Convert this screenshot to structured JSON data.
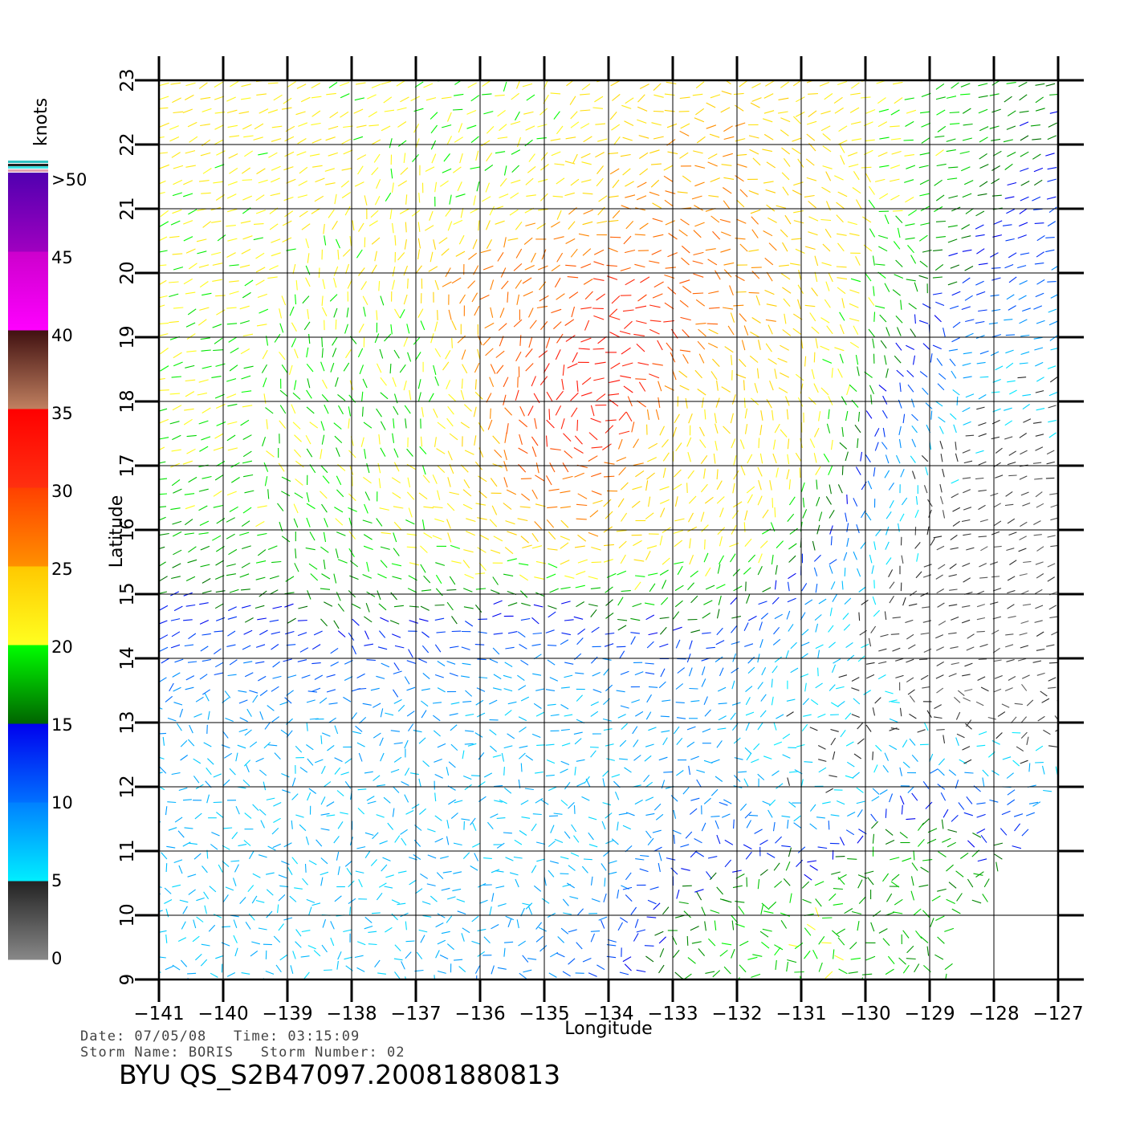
{
  "map": {
    "x_axis_label": "Longitude",
    "y_axis_label": "Latitude",
    "lon_ticks": [
      "−141",
      "−140",
      "−139",
      "−138",
      "−137",
      "−136",
      "−135",
      "−134",
      "−133",
      "−132",
      "−131",
      "−130",
      "−129",
      "−128",
      "−127"
    ],
    "lat_ticks": [
      "9",
      "10",
      "11",
      "12",
      "13",
      "14",
      "15",
      "16",
      "17",
      "18",
      "19",
      "20",
      "21",
      "22",
      "23"
    ],
    "lon_range": [
      -141,
      -127
    ],
    "lat_range": [
      9,
      23
    ],
    "grid": true,
    "layer": "scatterometer wind vectors (barbs), colored by speed"
  },
  "colorbar": {
    "unit": "knots",
    "labels": [
      ">50",
      "45",
      "40",
      "35",
      "30",
      "25",
      "20",
      "15",
      "10",
      "5",
      "0"
    ],
    "bands": [
      {
        "min": 0,
        "max": 5,
        "colors": [
          "#888888",
          "#222222"
        ]
      },
      {
        "min": 5,
        "max": 10,
        "colors": [
          "#00eeff",
          "#0080ff"
        ]
      },
      {
        "min": 10,
        "max": 15,
        "colors": [
          "#0070ff",
          "#0000ee"
        ]
      },
      {
        "min": 15,
        "max": 20,
        "colors": [
          "#006400",
          "#00ff00"
        ]
      },
      {
        "min": 20,
        "max": 25,
        "colors": [
          "#ffff20",
          "#ffc800"
        ]
      },
      {
        "min": 25,
        "max": 30,
        "colors": [
          "#ff9000",
          "#ff4000"
        ]
      },
      {
        "min": 30,
        "max": 35,
        "colors": [
          "#ff3010",
          "#ff0000"
        ]
      },
      {
        "min": 35,
        "max": 40,
        "colors": [
          "#c08060",
          "#401010"
        ]
      },
      {
        "min": 40,
        "max": 45,
        "colors": [
          "#ff00ff",
          "#cc00cc"
        ]
      },
      {
        "min": 45,
        "max": 50,
        "colors": [
          "#a000c0",
          "#5000b0"
        ]
      }
    ]
  },
  "wind_regions": [
    {
      "lon": -134.2,
      "lat": 18.5,
      "speed": 33
    },
    {
      "lon": -135.5,
      "lat": 19.8,
      "speed": 27
    },
    {
      "lon": -132.5,
      "lat": 17.2,
      "speed": 22
    },
    {
      "lon": -137.5,
      "lat": 18.5,
      "speed": 19
    },
    {
      "lon": -136,
      "lat": 21.5,
      "speed": 20
    },
    {
      "lon": -128.5,
      "lat": 13.8,
      "speed": 3
    },
    {
      "lon": -127.7,
      "lat": 15.5,
      "speed": 3
    },
    {
      "lon": -130.5,
      "lat": 12.2,
      "speed": 5
    },
    {
      "lon": -135,
      "lat": 12,
      "speed": 7
    },
    {
      "lon": -139,
      "lat": 10.5,
      "speed": 7
    },
    {
      "lon": -131,
      "lat": 9.6,
      "speed": 19
    },
    {
      "lon": -129.6,
      "lat": 10.8,
      "speed": 18
    }
  ],
  "info": {
    "date_line": "Date: 07/05/08   Time: 03:15:09",
    "storm_line": "Storm Name: BORIS   Storm Number: 02",
    "product_id": "BYU QS_S2B47097.20081880813"
  }
}
